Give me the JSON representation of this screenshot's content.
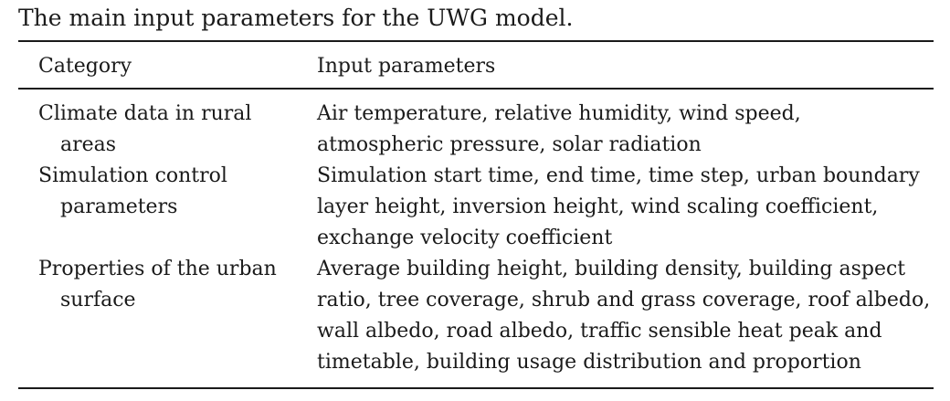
{
  "caption": "The main input parameters for the UWG model.",
  "table": {
    "headers": [
      "Category",
      "Input parameters"
    ],
    "rows": [
      {
        "category": "Climate data in rural areas",
        "parameters": "Air temperature, relative humidity, wind speed, atmospheric pressure, solar radiation"
      },
      {
        "category": "Simulation control parameters",
        "parameters": "Simulation start time, end time, time step, urban boundary layer height, inversion height, wind scaling coefficient, exchange velocity coefficient"
      },
      {
        "category": "Properties of the urban surface",
        "parameters": "Average building height, building density, building aspect ratio, tree coverage, shrub and grass coverage, roof albedo, wall albedo, road albedo, traffic sensible heat peak and timetable, building usage distribution and proportion"
      }
    ]
  }
}
